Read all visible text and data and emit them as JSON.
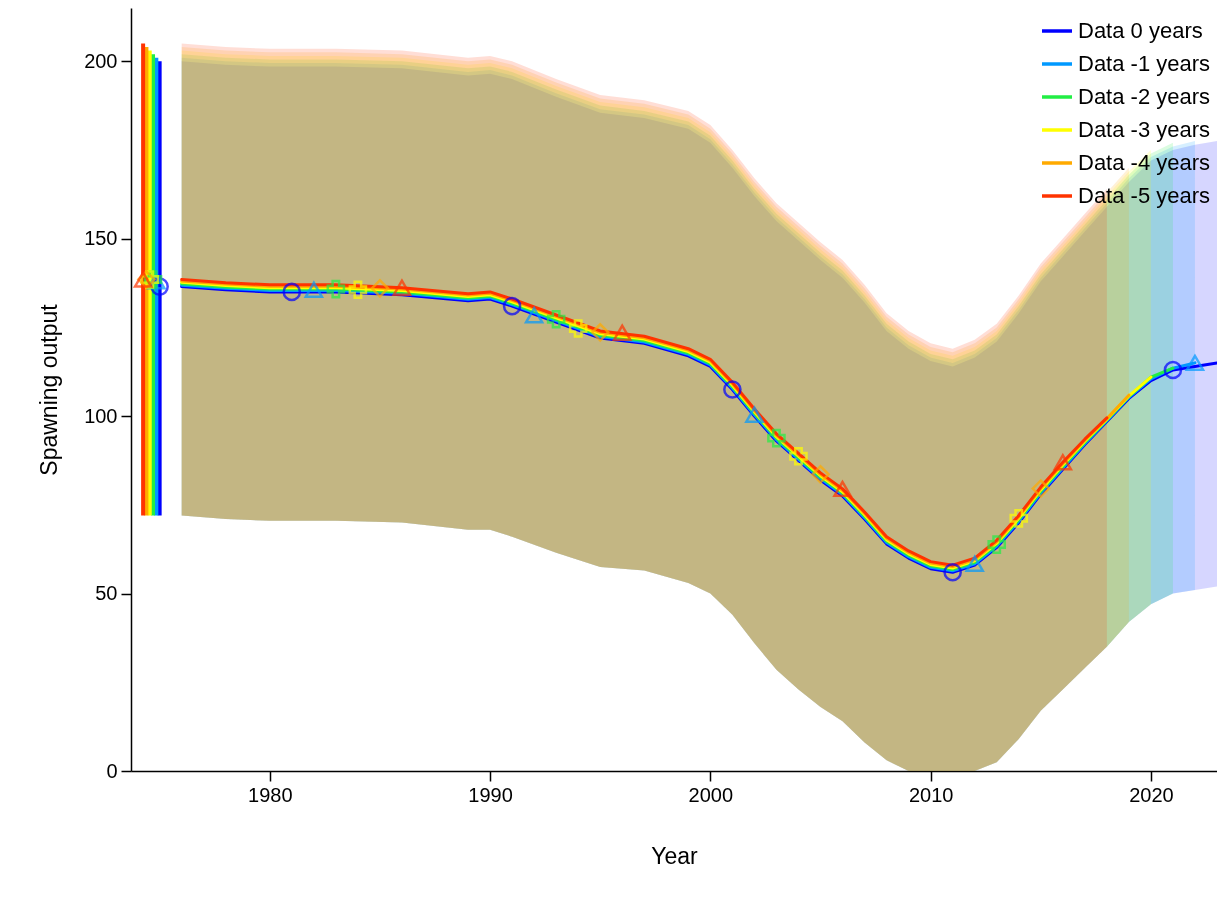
{
  "chart_data": {
    "type": "line",
    "xlabel": "Year",
    "ylabel": "Spawning output",
    "legend": "top right",
    "xlim": [
      1973.7,
      2023
    ],
    "xticks": [
      1980,
      1990,
      2000,
      2010,
      2020
    ],
    "ylim": [
      0,
      215
    ],
    "yticks": [
      0,
      50,
      100,
      150,
      200
    ],
    "x": [
      1976,
      1978,
      1980,
      1983,
      1986,
      1989,
      1990,
      1991,
      1993,
      1995,
      1997,
      1999,
      2000,
      2001,
      2002,
      2003,
      2004,
      2005,
      2006,
      2007,
      2008,
      2009,
      2010,
      2011,
      2012,
      2013,
      2014,
      2015,
      2016,
      2017,
      2018,
      2019,
      2020,
      2021,
      2022,
      2023
    ],
    "series": [
      {
        "name": "Data 0 years",
        "type": "line",
        "color": "#0000ff",
        "values": [
          136.5,
          135.6,
          135,
          135,
          134.2,
          132.5,
          133,
          131,
          126.5,
          122,
          120.5,
          117,
          114,
          107.5,
          100,
          93,
          87.5,
          82,
          77.5,
          71,
          64,
          60,
          57,
          56,
          58,
          63,
          70,
          78,
          85,
          92,
          98.5,
          105,
          110,
          113,
          114,
          115
        ],
        "lower": [
          72,
          71,
          70.5,
          70.5,
          70,
          68,
          68,
          66,
          61.5,
          57.5,
          56.5,
          53,
          50,
          44,
          36,
          28.5,
          23,
          18,
          14,
          8,
          3,
          0,
          0,
          0,
          0,
          2.5,
          9,
          17,
          23,
          29,
          35,
          42,
          47,
          50,
          51,
          52
        ],
        "upper": [
          200,
          199,
          198.5,
          198.5,
          198,
          196,
          196.5,
          195,
          190,
          185.5,
          184,
          181,
          177,
          170,
          162,
          155,
          149.5,
          144,
          139,
          132,
          124,
          119,
          115.5,
          114,
          116.5,
          121,
          129,
          138,
          145,
          152,
          159,
          166,
          172,
          175,
          176.5,
          177.5
        ]
      },
      {
        "name": "Data -1 years",
        "type": "line",
        "color": "#0099ff",
        "values": [
          136.9,
          136,
          135.4,
          135.4,
          134.6,
          132.9,
          133.4,
          131.4,
          126.9,
          122.4,
          120.9,
          117.4,
          114.4,
          107.9,
          100.4,
          93.4,
          87.9,
          82.4,
          77.9,
          71.4,
          64.4,
          60.4,
          57.4,
          56.4,
          58.4,
          63.4,
          70.4,
          78.4,
          85.4,
          92.3,
          98.7,
          105.3,
          110.5,
          113.5,
          115,
          null
        ],
        "lower": [
          72,
          71,
          70.5,
          70.5,
          70,
          68,
          68,
          66,
          61.5,
          57.5,
          56.5,
          53,
          50,
          44,
          36,
          28.5,
          23,
          18,
          14,
          8,
          3,
          0,
          0,
          0,
          0,
          2.5,
          9,
          17,
          23,
          29,
          35,
          42,
          47,
          50,
          51,
          null
        ],
        "upper": [
          201,
          200,
          199.5,
          199.5,
          199,
          197,
          197.5,
          196,
          191,
          186.5,
          185,
          182,
          178,
          171,
          163,
          156,
          150.5,
          145,
          140,
          133,
          125,
          120,
          116.5,
          115,
          117.5,
          122,
          130,
          139,
          146,
          153,
          160,
          167,
          173,
          176,
          177.5,
          null
        ]
      },
      {
        "name": "Data -2 years",
        "type": "line",
        "color": "#22ee44",
        "values": [
          137.3,
          136.4,
          135.8,
          135.8,
          135,
          133.3,
          133.8,
          131.8,
          127.3,
          122.8,
          121.3,
          117.8,
          114.8,
          108.3,
          100.8,
          93.8,
          88.3,
          82.8,
          78.3,
          71.8,
          64.8,
          60.8,
          57.8,
          56.8,
          58.8,
          63.8,
          70.8,
          78.8,
          85.8,
          92.6,
          98.9,
          105.5,
          111,
          113.5,
          null,
          null
        ],
        "lower": [
          72,
          71,
          70.5,
          70.5,
          70,
          68,
          68,
          66,
          61.5,
          57.5,
          56.5,
          53,
          50,
          44,
          36,
          28.5,
          23,
          18,
          14,
          8,
          3,
          0,
          0,
          0,
          0,
          2.5,
          9,
          17,
          23,
          29,
          35,
          42,
          47,
          50,
          null,
          null
        ],
        "upper": [
          202,
          201,
          200.5,
          200.5,
          200,
          198,
          198.5,
          197,
          192,
          187.5,
          186,
          183,
          179,
          172,
          164,
          157,
          151.5,
          146,
          141,
          134,
          126,
          121,
          117.5,
          116,
          118.5,
          123,
          131,
          140,
          147,
          154,
          161,
          168,
          174,
          177,
          null,
          null
        ]
      },
      {
        "name": "Data -3 years",
        "type": "line",
        "color": "#ffff00",
        "values": [
          137.7,
          136.8,
          136.2,
          136.2,
          135.4,
          133.7,
          134.2,
          132.2,
          127.7,
          123.2,
          121.7,
          118.2,
          115.2,
          108.7,
          101.2,
          94.2,
          88.7,
          83.2,
          78.7,
          72.2,
          65.2,
          61.2,
          58.2,
          57.2,
          59.2,
          64.2,
          71.2,
          79.2,
          86.2,
          92.9,
          99.1,
          105.7,
          111,
          null,
          null,
          null
        ],
        "lower": [
          72,
          71,
          70.5,
          70.5,
          70,
          68,
          68,
          66,
          61.5,
          57.5,
          56.5,
          53,
          50,
          44,
          36,
          28.5,
          23,
          18,
          14,
          8,
          3,
          0,
          0,
          0,
          0,
          2.5,
          9,
          17,
          23,
          29,
          35,
          42,
          47,
          null,
          null,
          null
        ],
        "upper": [
          203,
          202,
          201.5,
          201.5,
          201,
          199,
          199.5,
          198,
          193,
          188.5,
          187,
          184,
          180,
          173,
          165,
          158,
          152.5,
          147,
          142,
          135,
          127,
          122,
          118.5,
          117,
          119.5,
          124,
          132,
          141,
          148,
          155,
          162,
          169,
          175,
          null,
          null,
          null
        ]
      },
      {
        "name": "Data -4 years",
        "type": "line",
        "color": "#ffaa00",
        "values": [
          138.1,
          137.2,
          136.6,
          136.6,
          135.8,
          134.1,
          134.6,
          132.6,
          128.1,
          123.6,
          122.1,
          118.6,
          115.6,
          109.1,
          101.6,
          94.6,
          89.1,
          83.6,
          79.1,
          72.6,
          65.6,
          61.6,
          58.6,
          57.6,
          59.6,
          64.6,
          71.6,
          79.6,
          86.6,
          93.2,
          99.3,
          105.9,
          null,
          null,
          null,
          null
        ],
        "lower": [
          72,
          71,
          70.5,
          70.5,
          70,
          68,
          68,
          66,
          61.5,
          57.5,
          56.5,
          53,
          50,
          44,
          36,
          28.5,
          23,
          18,
          14,
          8,
          3,
          0,
          0,
          0,
          0,
          2.5,
          9,
          17,
          23,
          29,
          35,
          42,
          null,
          null,
          null,
          null
        ],
        "upper": [
          204,
          203,
          202.5,
          202.5,
          202,
          200,
          200.5,
          199,
          194,
          189.5,
          188,
          185,
          181,
          174,
          166,
          159,
          153.5,
          148,
          143,
          136,
          128,
          123,
          119.5,
          118,
          120.5,
          125,
          133,
          142,
          149,
          156,
          163,
          170,
          null,
          null,
          null,
          null
        ]
      },
      {
        "name": "Data -5 years",
        "type": "line",
        "color": "#ff3300",
        "values": [
          138.5,
          137.6,
          137,
          137,
          136.2,
          134.5,
          135,
          133,
          128.5,
          124,
          122.5,
          119,
          116,
          109.5,
          102,
          95,
          89.5,
          84,
          79.5,
          73,
          66,
          62,
          59,
          58,
          60,
          65,
          72,
          80,
          87,
          93.5,
          99.5,
          null,
          null,
          null,
          null,
          null
        ],
        "lower": [
          72,
          71,
          70.5,
          70.5,
          70,
          68,
          68,
          66,
          61.5,
          57.5,
          56.5,
          53,
          50,
          44,
          36,
          28.5,
          23,
          18,
          14,
          8,
          3,
          0,
          0,
          0,
          0,
          2.5,
          9,
          17,
          23,
          29,
          35,
          null,
          null,
          null,
          null,
          null
        ],
        "upper": [
          205,
          204,
          203.5,
          203.5,
          203,
          201,
          201.5,
          200,
          195,
          190.5,
          189,
          186,
          182,
          175,
          167,
          160,
          154.5,
          149,
          144,
          137,
          129,
          124,
          120.5,
          119,
          121.5,
          126,
          134,
          143,
          150,
          157,
          164,
          null,
          null,
          null,
          null,
          null
        ]
      },
      {
        "type": "scatter",
        "color": "#0000ff",
        "marker": "circle",
        "x": [
          1975,
          1981,
          1991,
          2001,
          2011,
          2021
        ],
        "values": [
          136.5,
          135,
          131,
          107.5,
          56,
          113
        ],
        "errors": [
          [
            72,
            200
          ],
          null,
          null,
          null,
          null,
          null
        ]
      },
      {
        "type": "scatter",
        "color": "#0099ff",
        "marker": "triangle",
        "x": [
          1974.85,
          1982,
          1992,
          2002,
          2012,
          2022
        ],
        "values": [
          138,
          135.6,
          128.4,
          100.4,
          58.4,
          115
        ],
        "errors": [
          [
            72,
            201
          ],
          null,
          null,
          null,
          null,
          null
        ]
      },
      {
        "type": "scatter",
        "color": "#22ee44",
        "marker": "cross",
        "x": [
          1974.7,
          1983,
          1993,
          2003,
          2013
        ],
        "values": [
          138.5,
          135.8,
          127.3,
          93.8,
          63.8
        ],
        "errors": [
          [
            72,
            202
          ],
          null,
          null,
          null,
          null
        ]
      },
      {
        "type": "scatter",
        "color": "#ffff00",
        "marker": "cross",
        "x": [
          1974.55,
          1984,
          1994,
          2004,
          2014
        ],
        "values": [
          138.5,
          135.6,
          124.7,
          88.7,
          71.2
        ],
        "errors": [
          [
            72,
            203
          ],
          null,
          null,
          null,
          null
        ]
      },
      {
        "type": "scatter",
        "color": "#ffaa00",
        "marker": "diamond",
        "x": [
          1974.4,
          1985,
          1995,
          2005,
          2015
        ],
        "values": [
          138.5,
          136,
          123.6,
          83.6,
          79.6
        ],
        "errors": [
          [
            72,
            204
          ],
          null,
          null,
          null,
          null
        ]
      },
      {
        "type": "scatter",
        "color": "#ff3300",
        "marker": "triangle",
        "x": [
          1974.25,
          1986,
          1996,
          2006,
          2016
        ],
        "values": [
          138.5,
          136.2,
          123.5,
          79.5,
          87
        ],
        "errors": [
          [
            72,
            205
          ],
          null,
          null,
          null,
          null
        ]
      }
    ]
  }
}
